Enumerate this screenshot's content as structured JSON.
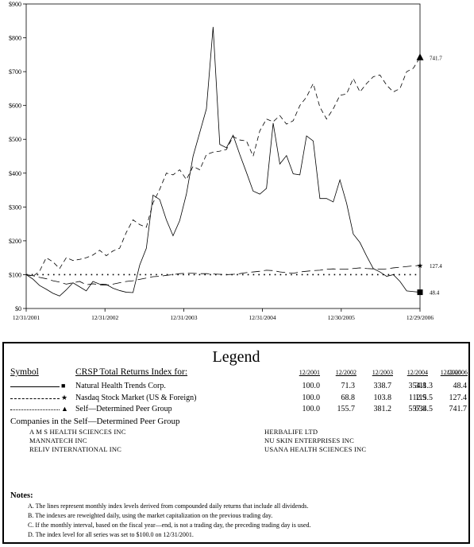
{
  "chart_data": {
    "type": "line",
    "y_axis": {
      "ticks": [
        "$0",
        "$100",
        "$200",
        "$300",
        "$400",
        "$500",
        "$600",
        "$700",
        "$800",
        "$900"
      ],
      "min": 0,
      "max": 900
    },
    "x_axis": {
      "ticks": [
        "12/31/2001",
        "12/31/2002",
        "12/31/2003",
        "12/31/2004",
        "12/30/2005",
        "12/29/2006"
      ]
    },
    "baseline": 100,
    "end_labels": [
      "741.7",
      "127.4",
      "48.4"
    ],
    "series": [
      {
        "name": "Natural Health Trends Corp.",
        "style": "solid",
        "marker": "square",
        "values": [
          100,
          87,
          68,
          57,
          45,
          37,
          55,
          76,
          64,
          52,
          80,
          72,
          71,
          60,
          53,
          48,
          47,
          128,
          178,
          335,
          322,
          262,
          215,
          260,
          338,
          450,
          520,
          590,
          832,
          485,
          475,
          512,
          455,
          402,
          347,
          338,
          355,
          548,
          427,
          452,
          398,
          395,
          510,
          495,
          325,
          325,
          315,
          380,
          311,
          220,
          195,
          155,
          118,
          108,
          95,
          100,
          80,
          52,
          50,
          48
        ]
      },
      {
        "name": "Nasdaq Stock Market (US & Foreign)",
        "style": "longdash",
        "marker": "star",
        "values": [
          100,
          97,
          92,
          88,
          82,
          78,
          72,
          76,
          80,
          70,
          73,
          70,
          69,
          72,
          76,
          80,
          82,
          86,
          90,
          94,
          95,
          98,
          100,
          103,
          104,
          104,
          103,
          103,
          102,
          101,
          100,
          101,
          103,
          106,
          108,
          110,
          113,
          112,
          108,
          106,
          104,
          108,
          110,
          112,
          113,
          116,
          117,
          116,
          116,
          118,
          120,
          118,
          117,
          116,
          117,
          120,
          122,
          124,
          126,
          127
        ]
      },
      {
        "name": "Self-Determined Peer Group",
        "style": "shortdash",
        "marker": "triangle",
        "values": [
          100,
          95,
          110,
          150,
          138,
          118,
          150,
          142,
          145,
          150,
          158,
          172,
          156,
          170,
          178,
          225,
          262,
          248,
          240,
          312,
          352,
          400,
          395,
          410,
          381,
          420,
          410,
          455,
          462,
          465,
          470,
          508,
          498,
          495,
          450,
          525,
          560,
          552,
          570,
          545,
          555,
          600,
          625,
          665,
          595,
          560,
          590,
          630,
          634,
          680,
          640,
          665,
          685,
          690,
          660,
          640,
          650,
          700,
          710,
          742
        ]
      }
    ]
  },
  "legend": {
    "title": "Legend",
    "symbol_header": "Symbol",
    "index_header": "CRSP Total Returns Index for:",
    "years": [
      "12/2001",
      "12/2002",
      "12/2003",
      "12/2004",
      "12/2005",
      "12/2006"
    ],
    "rows": [
      {
        "label": "Natural Health Trends Corp.",
        "marker": "■",
        "values": [
          "100.0",
          "71.3",
          "338.7",
          "354.8",
          "311.3",
          "48.4"
        ]
      },
      {
        "label": "Nasdaq Stock Market (US & Foreign)",
        "marker": "★",
        "values": [
          "100.0",
          "68.8",
          "103.8",
          "112.9",
          "115.5",
          "127.4"
        ]
      },
      {
        "label": "Self—Determined Peer Group",
        "marker": "▲",
        "values": [
          "100.0",
          "155.7",
          "381.2",
          "557.8",
          "634.5",
          "741.7"
        ]
      }
    ],
    "peer_group_title": "Companies in the Self—Determined Peer Group",
    "peer_companies": [
      "A M S HEALTH SCIENCES INC",
      "HERBALIFE LTD",
      "MANNATECH INC",
      "NU SKIN ENTERPRISES INC",
      "RELIV INTERNATIONAL INC",
      "USANA HEALTH SCIENCES INC"
    ],
    "notes_title": "Notes:",
    "notes": [
      "A. The lines represent monthly index levels derived from compounded daily returns that include all dividends.",
      "B. The indexes are reweighted daily, using the market capitalization on the previous trading day.",
      "C. If the monthly interval, based on the fiscal year—end, is not a trading day, the preceding trading day is used.",
      "D. The index level for all series was set to $100.0 on 12/31/2001."
    ]
  }
}
